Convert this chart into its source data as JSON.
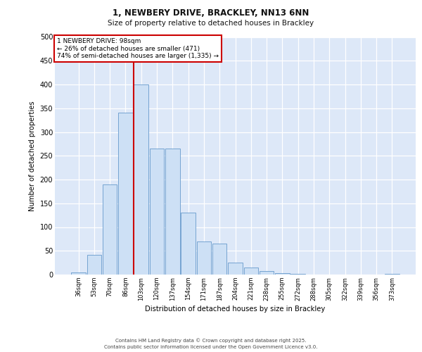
{
  "title_line1": "1, NEWBERY DRIVE, BRACKLEY, NN13 6NN",
  "title_line2": "Size of property relative to detached houses in Brackley",
  "xlabel": "Distribution of detached houses by size in Brackley",
  "ylabel": "Number of detached properties",
  "categories": [
    "36sqm",
    "53sqm",
    "70sqm",
    "86sqm",
    "103sqm",
    "120sqm",
    "137sqm",
    "154sqm",
    "171sqm",
    "187sqm",
    "204sqm",
    "221sqm",
    "238sqm",
    "255sqm",
    "272sqm",
    "288sqm",
    "305sqm",
    "322sqm",
    "339sqm",
    "356sqm",
    "373sqm"
  ],
  "values": [
    5,
    42,
    190,
    340,
    400,
    265,
    265,
    130,
    70,
    65,
    25,
    15,
    8,
    3,
    1,
    0,
    0,
    0,
    0,
    0,
    1
  ],
  "bar_color": "#cde0f5",
  "bar_edge_color": "#6699cc",
  "vline_color": "#cc0000",
  "vline_x_index": 4,
  "annotation_line1": "1 NEWBERY DRIVE: 98sqm",
  "annotation_line2": "← 26% of detached houses are smaller (471)",
  "annotation_line3": "74% of semi-detached houses are larger (1,335) →",
  "annotation_box_facecolor": "#ffffff",
  "annotation_box_edgecolor": "#cc0000",
  "ylim": [
    0,
    500
  ],
  "yticks": [
    0,
    50,
    100,
    150,
    200,
    250,
    300,
    350,
    400,
    450,
    500
  ],
  "plot_bg_color": "#dde8f8",
  "grid_color": "#ffffff",
  "footer_text": "Contains HM Land Registry data © Crown copyright and database right 2025.\nContains public sector information licensed under the Open Government Licence v3.0."
}
